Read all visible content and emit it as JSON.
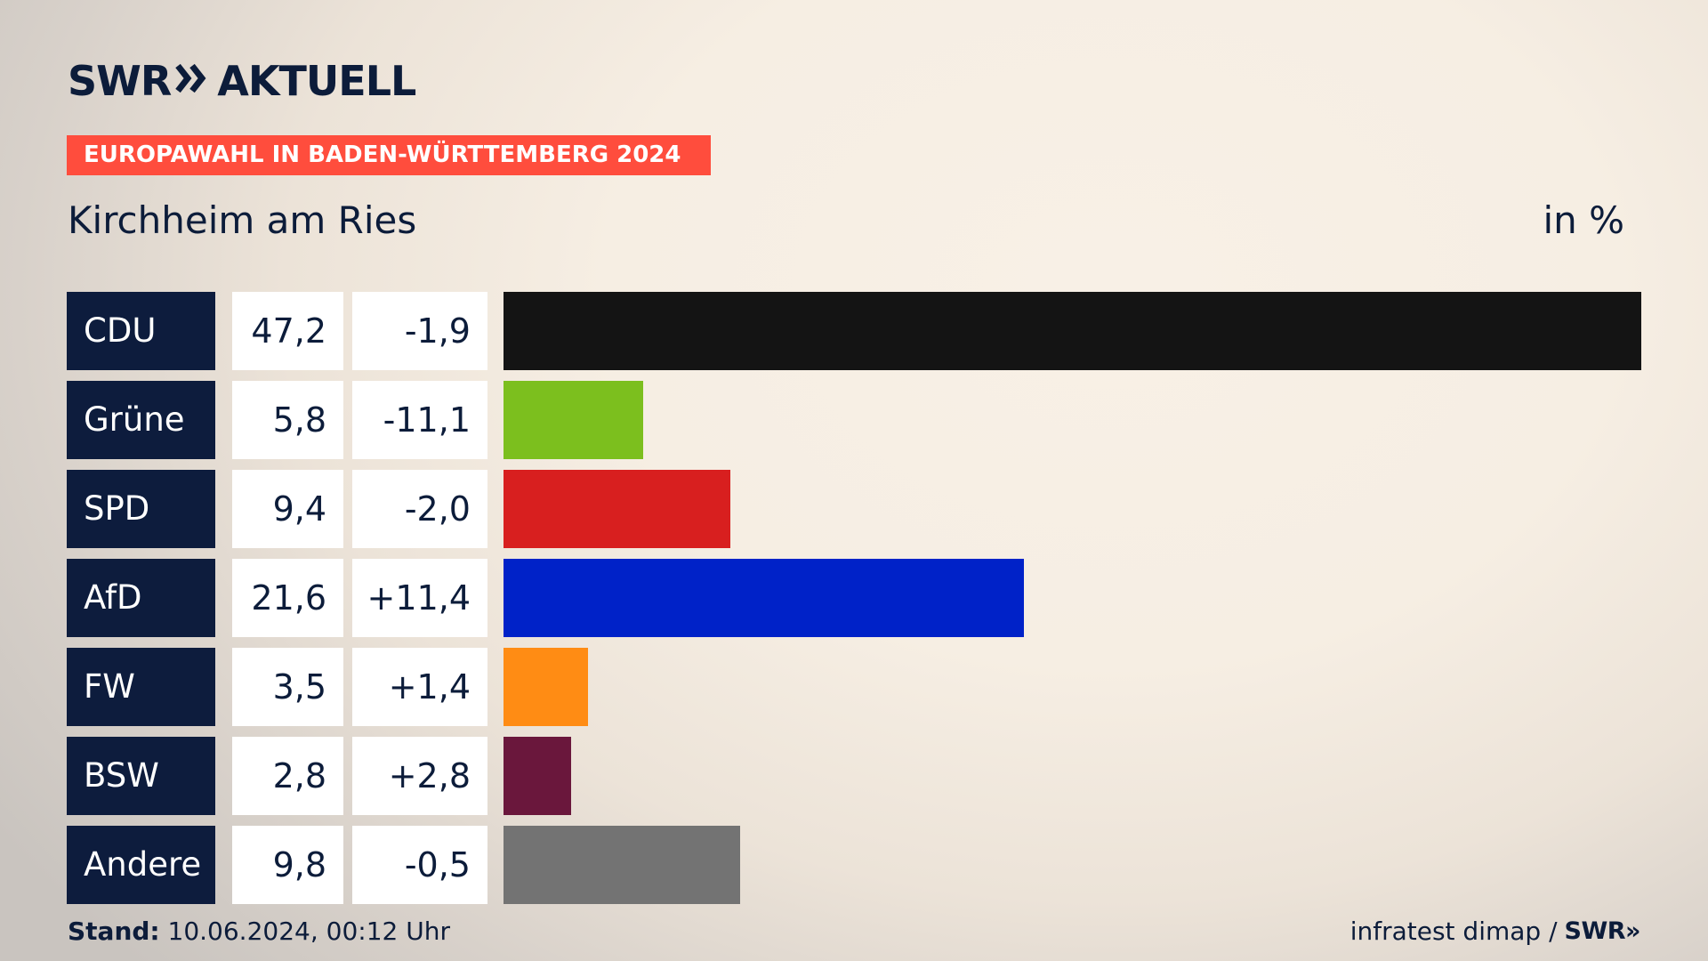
{
  "header": {
    "logo_left": "SWR",
    "logo_chevrons": "»",
    "logo_right": "AKTUELL",
    "event": "EUROPAWAHL IN BADEN-WÜRTTEMBERG 2024",
    "location": "Kirchheim am Ries",
    "unit": "in %"
  },
  "footer": {
    "stand_label": "Stand:",
    "stand_value": " 10.06.2024, 00:12 Uhr",
    "source": "infratest dimap / ",
    "source_brand": "SWR»"
  },
  "chart_data": {
    "type": "bar",
    "orientation": "horizontal",
    "categories": [
      "CDU",
      "Grüne",
      "SPD",
      "AfD",
      "FW",
      "BSW",
      "Andere"
    ],
    "values": [
      47.2,
      5.8,
      9.4,
      21.6,
      3.5,
      2.8,
      9.8
    ],
    "value_labels": [
      "47,2",
      "5,8",
      "9,4",
      "21,6",
      "3,5",
      "2,8",
      "9,8"
    ],
    "diff_values": [
      -1.9,
      -11.1,
      -2.0,
      11.4,
      1.4,
      2.8,
      -0.5
    ],
    "diff_labels": [
      "-1,9",
      "-11,1",
      "-2,0",
      "+11,4",
      "+1,4",
      "+2,8",
      "-0,5"
    ],
    "colors": [
      "#141414",
      "#7cbf1e",
      "#d81f1f",
      "#0022c8",
      "#ff8c14",
      "#6a173c",
      "#737373"
    ],
    "xlim": [
      0,
      47.2
    ],
    "grid": false,
    "legend": "none"
  }
}
